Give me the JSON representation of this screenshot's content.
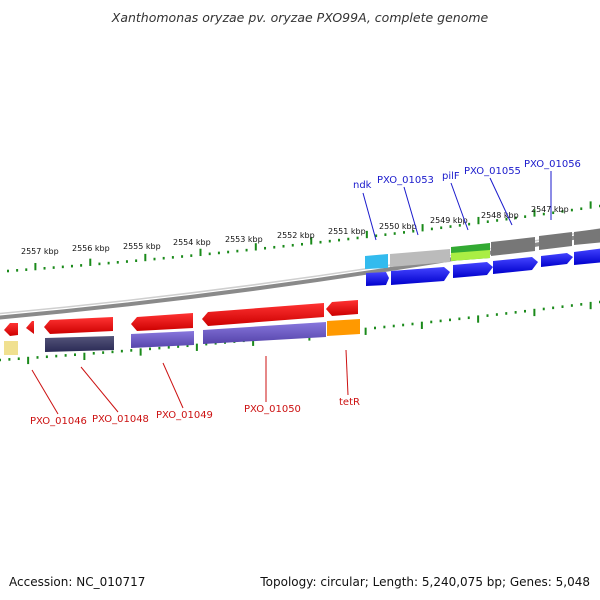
{
  "title": "Xanthomonas oryzae pv. oryzae PXO99A, complete genome",
  "footer": {
    "accession": "Accession: NC_010717",
    "summary": "Topology: circular; Length: 5,240,075 bp; Genes: 5,048"
  },
  "ticks": [
    "2557 kbp",
    "2556 kbp",
    "2555 kbp",
    "2554 kbp",
    "2553 kbp",
    "2552 kbp",
    "2551 kbp",
    "2550 kbp",
    "2549 kbp",
    "2548 kbp",
    "2547 kbp"
  ],
  "labels_top": [
    "ndk",
    "PXO_01053",
    "pilF",
    "PXO_01055",
    "PXO_01056"
  ],
  "labels_bottom": [
    "PXO_01046",
    "PXO_01048",
    "PXO_01049",
    "PXO_01050",
    "tetR"
  ],
  "colors": {
    "top_label": "#1a1acc",
    "bottom_label": "#cc1111",
    "tick": "#1a8a1a",
    "backbone": "#888888",
    "cds": "#0000ee",
    "gene": "#ee0000",
    "rna": "#6655cc"
  }
}
